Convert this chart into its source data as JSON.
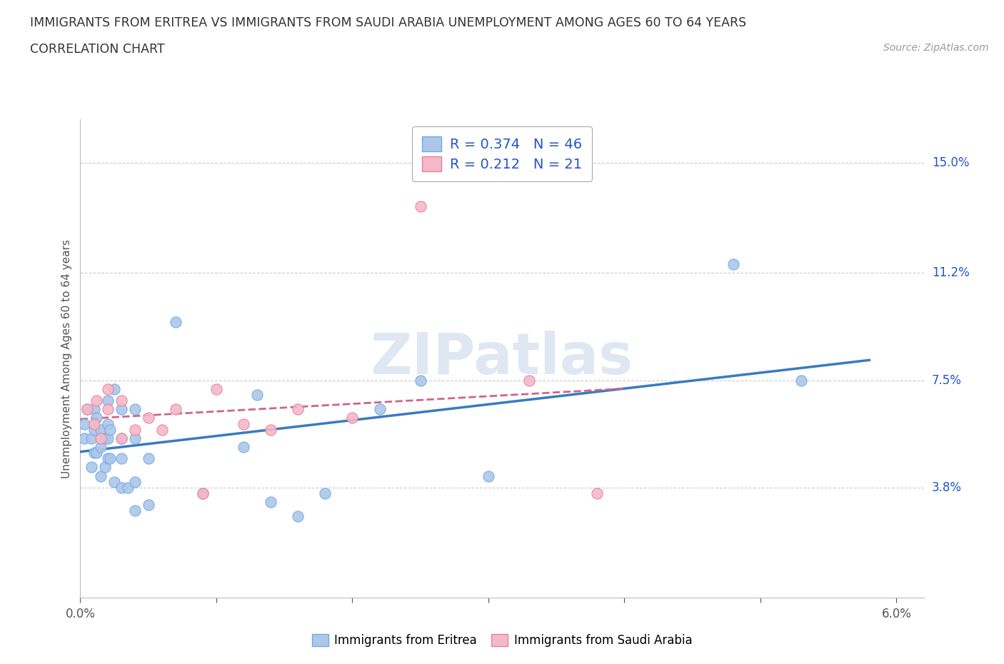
{
  "title_line1": "IMMIGRANTS FROM ERITREA VS IMMIGRANTS FROM SAUDI ARABIA UNEMPLOYMENT AMONG AGES 60 TO 64 YEARS",
  "title_line2": "CORRELATION CHART",
  "source_text": "Source: ZipAtlas.com",
  "ylabel": "Unemployment Among Ages 60 to 64 years",
  "xlim": [
    0.0,
    0.062
  ],
  "ylim": [
    0.0,
    0.165
  ],
  "xtick_positions": [
    0.0,
    0.01,
    0.02,
    0.03,
    0.04,
    0.05,
    0.06
  ],
  "xtick_labels_show": {
    "0.0": "0.0%",
    "0.06": "6.0%"
  },
  "ytick_positions": [
    0.038,
    0.075,
    0.112,
    0.15
  ],
  "ytick_labels": [
    "3.8%",
    "7.5%",
    "11.2%",
    "15.0%"
  ],
  "eritrea_fill_color": "#aec6e8",
  "eritrea_edge_color": "#6aaee8",
  "saudi_fill_color": "#f5b8c8",
  "saudi_edge_color": "#e8819a",
  "eritrea_line_color": "#3a7abf",
  "saudi_line_color": "#cc6688",
  "legend_text_color": "#2255cc",
  "R_eritrea": "0.374",
  "N_eritrea": "46",
  "R_saudi": "0.212",
  "N_saudi": "21",
  "watermark": "ZIPatlas",
  "watermark_color": "#c8d8ea",
  "legend_label_eritrea": "Immigrants from Eritrea",
  "legend_label_saudi": "Immigrants from Saudi Arabia",
  "eritrea_x": [
    0.0003,
    0.0003,
    0.0005,
    0.0008,
    0.0008,
    0.001,
    0.001,
    0.001,
    0.0012,
    0.0012,
    0.0015,
    0.0015,
    0.0015,
    0.0018,
    0.0018,
    0.002,
    0.002,
    0.002,
    0.002,
    0.0022,
    0.0022,
    0.0025,
    0.0025,
    0.003,
    0.003,
    0.003,
    0.003,
    0.0035,
    0.004,
    0.004,
    0.004,
    0.004,
    0.005,
    0.005,
    0.007,
    0.009,
    0.012,
    0.013,
    0.018,
    0.022,
    0.025,
    0.03,
    0.048,
    0.053,
    0.014,
    0.016
  ],
  "eritrea_y": [
    0.055,
    0.06,
    0.065,
    0.045,
    0.055,
    0.05,
    0.058,
    0.065,
    0.05,
    0.062,
    0.042,
    0.052,
    0.058,
    0.045,
    0.055,
    0.048,
    0.055,
    0.06,
    0.068,
    0.048,
    0.058,
    0.04,
    0.072,
    0.038,
    0.048,
    0.055,
    0.065,
    0.038,
    0.03,
    0.04,
    0.055,
    0.065,
    0.032,
    0.048,
    0.095,
    0.036,
    0.052,
    0.07,
    0.036,
    0.065,
    0.075,
    0.042,
    0.115,
    0.075,
    0.033,
    0.028
  ],
  "saudi_x": [
    0.0005,
    0.001,
    0.0012,
    0.0015,
    0.002,
    0.002,
    0.003,
    0.003,
    0.004,
    0.005,
    0.006,
    0.007,
    0.009,
    0.01,
    0.012,
    0.014,
    0.016,
    0.02,
    0.025,
    0.033,
    0.038
  ],
  "saudi_y": [
    0.065,
    0.06,
    0.068,
    0.055,
    0.065,
    0.072,
    0.055,
    0.068,
    0.058,
    0.062,
    0.058,
    0.065,
    0.036,
    0.072,
    0.06,
    0.058,
    0.065,
    0.062,
    0.135,
    0.075,
    0.036
  ]
}
